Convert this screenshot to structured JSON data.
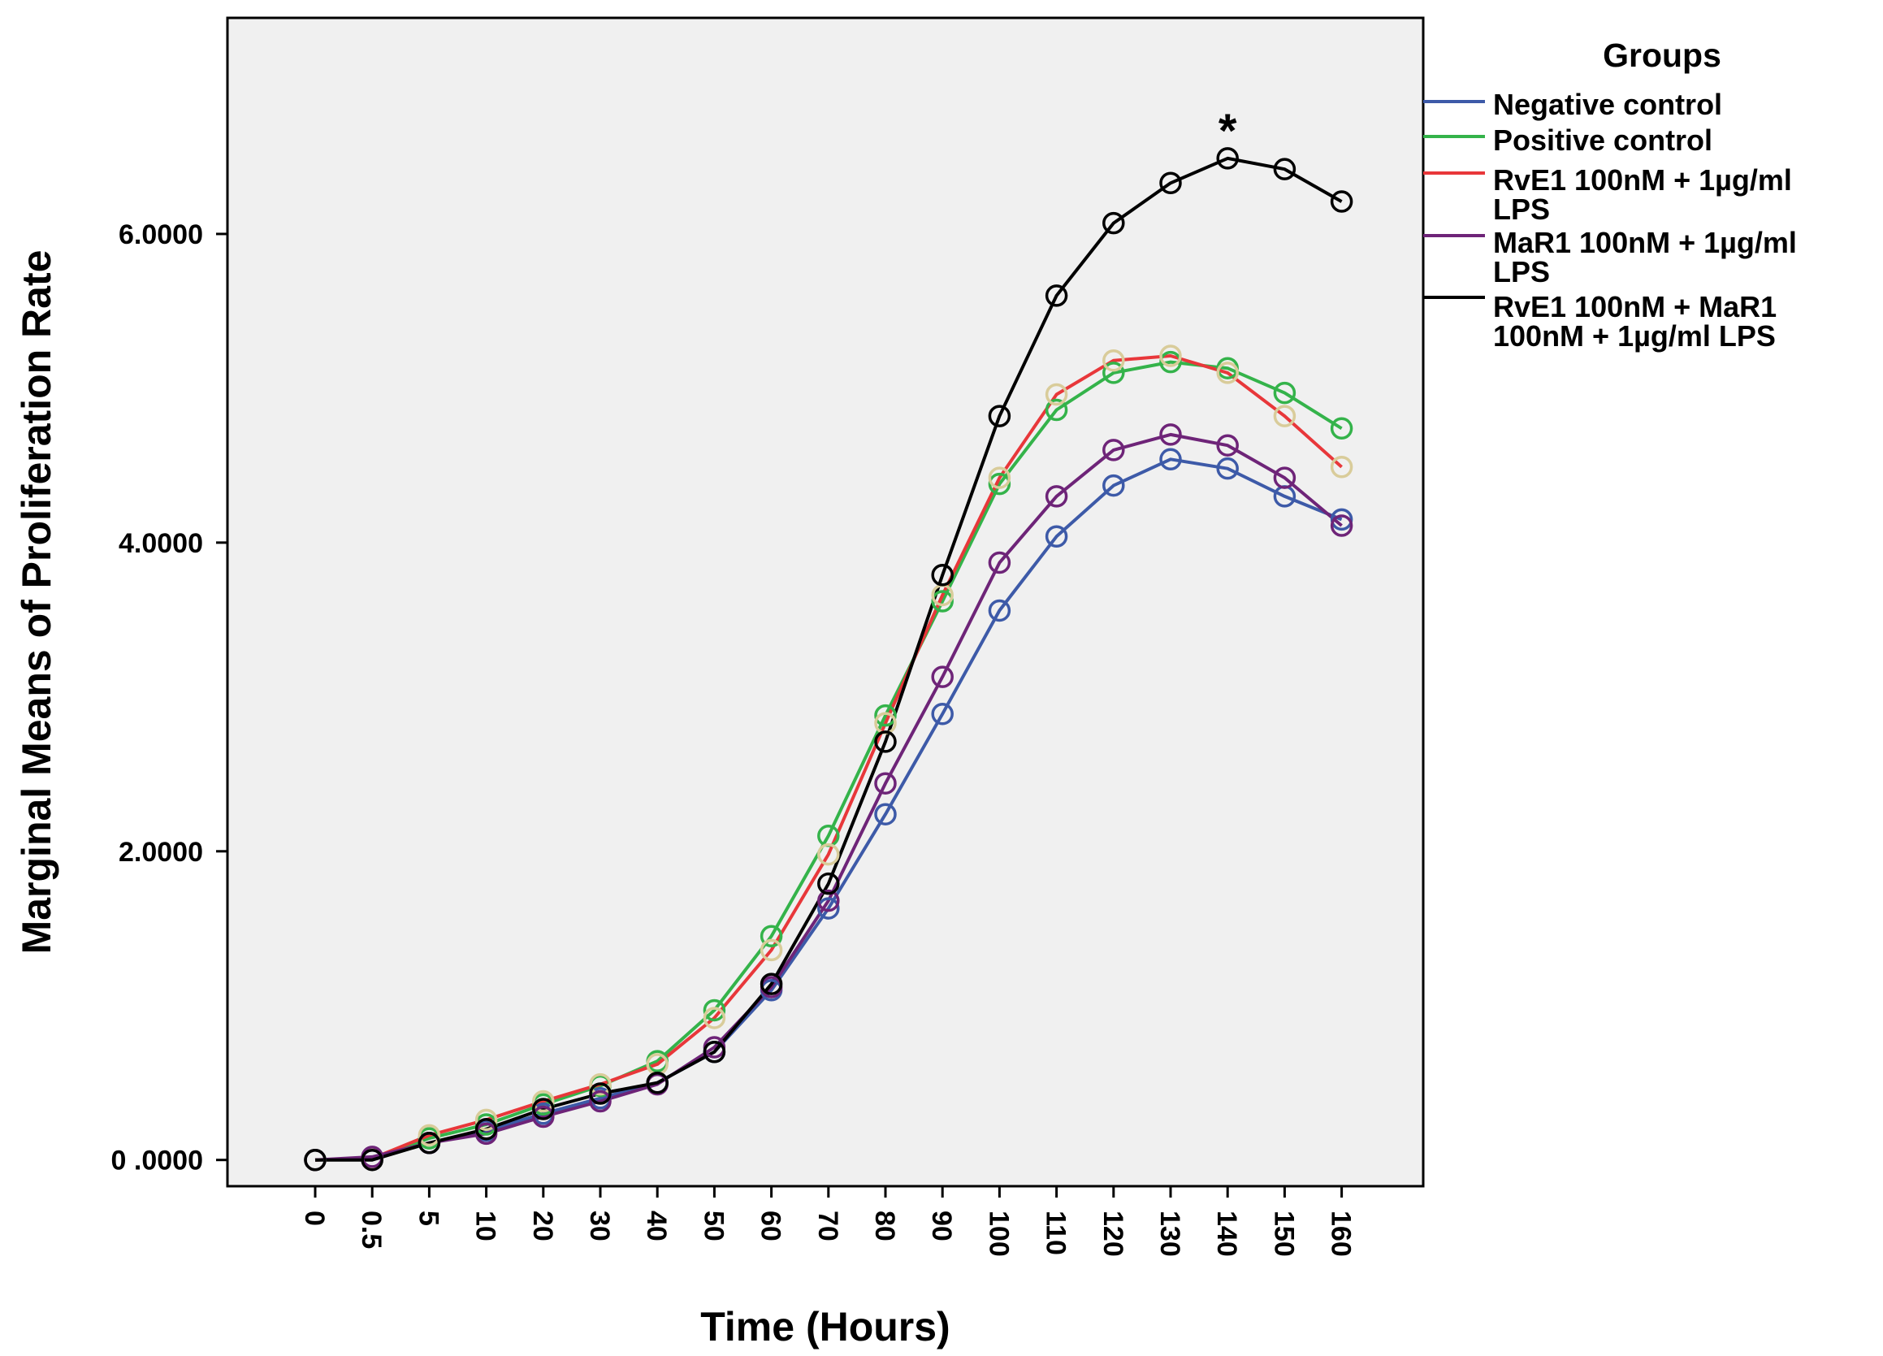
{
  "chart_data": {
    "type": "line",
    "xlabel": "Time (Hours)",
    "ylabel": "Marginal Means of Proliferation Rate",
    "categories": [
      "0",
      "0.5",
      "5",
      "10",
      "20",
      "30",
      "40",
      "50",
      "60",
      "70",
      "80",
      "90",
      "100",
      "110",
      "120",
      "130",
      "140",
      "150",
      "160"
    ],
    "y_ticks": [
      0,
      2,
      4,
      6
    ],
    "y_tick_labels": [
      "0 .0000",
      "2.0000",
      "4.0000",
      "6.0000"
    ],
    "ylim": [
      -0.17,
      7.4
    ],
    "grid": false,
    "legend": {
      "title": "Groups",
      "position": "right",
      "entries": [
        {
          "lines": [
            "Negative control"
          ]
        },
        {
          "lines": [
            "Positive control"
          ]
        },
        {
          "lines": [
            "RvE1 100nM + 1µg/ml",
            "LPS"
          ]
        },
        {
          "lines": [
            "MaR1 100nM + 1µg/ml",
            "LPS"
          ]
        },
        {
          "lines": [
            "RvE1 100nM + MaR1",
            "100nM + 1µg/ml LPS"
          ]
        }
      ]
    },
    "annotations": [
      {
        "text": "*",
        "category": "140"
      }
    ],
    "series": [
      {
        "name": "Negative control",
        "line_color": "#3d5aa8",
        "marker_color": "#3d5aa8",
        "values": [
          0.0,
          0.01,
          0.11,
          0.19,
          0.3,
          0.4,
          0.5,
          0.7,
          1.1,
          1.63,
          2.24,
          2.89,
          3.56,
          4.04,
          4.37,
          4.54,
          4.48,
          4.3,
          4.15
        ]
      },
      {
        "name": "Positive control",
        "line_color": "#34b34a",
        "marker_color": "#34b34a",
        "values": [
          0.0,
          0.01,
          0.14,
          0.23,
          0.36,
          0.48,
          0.64,
          0.97,
          1.45,
          2.1,
          2.88,
          3.62,
          4.38,
          4.86,
          5.1,
          5.17,
          5.13,
          4.97,
          4.74
        ]
      },
      {
        "name": "RvE1 100nM + 1µg/ml LPS",
        "line_color": "#e8373a",
        "marker_color": "#d9cc9a",
        "values": [
          0.0,
          0.01,
          0.16,
          0.26,
          0.38,
          0.49,
          0.62,
          0.92,
          1.36,
          1.98,
          2.83,
          3.66,
          4.42,
          4.96,
          5.18,
          5.21,
          5.1,
          4.82,
          4.49
        ]
      },
      {
        "name": "MaR1 100nM + 1µg/ml LPS",
        "line_color": "#6e2478",
        "marker_color": "#6e2478",
        "values": [
          0.0,
          0.02,
          0.11,
          0.17,
          0.28,
          0.38,
          0.49,
          0.73,
          1.12,
          1.68,
          2.44,
          3.13,
          3.87,
          4.3,
          4.6,
          4.7,
          4.63,
          4.42,
          4.11
        ]
      },
      {
        "name": "RvE1 100nM + MaR1 100nM + 1µg/ml LPS",
        "line_color": "#000000",
        "marker_color": "#000000",
        "values": [
          0.0,
          0.0,
          0.11,
          0.2,
          0.33,
          0.43,
          0.5,
          0.7,
          1.14,
          1.79,
          2.71,
          3.79,
          4.82,
          5.6,
          6.07,
          6.33,
          6.49,
          6.42,
          6.21
        ]
      }
    ]
  }
}
